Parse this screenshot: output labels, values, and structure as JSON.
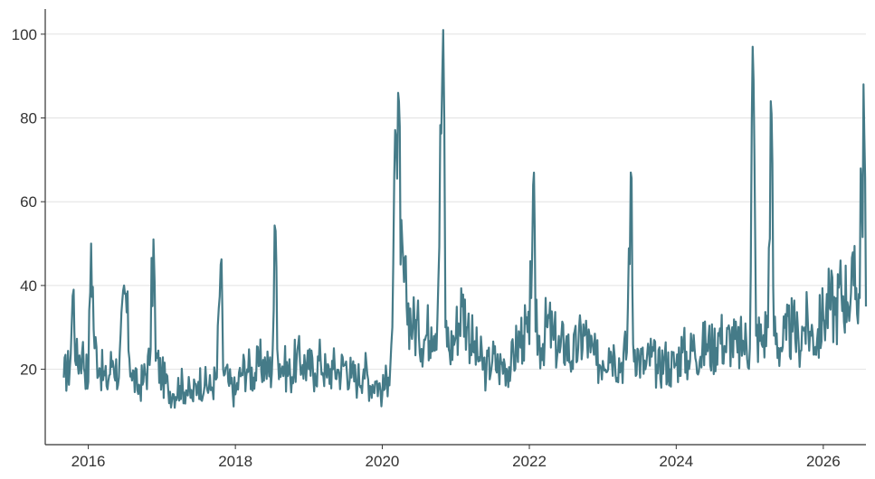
{
  "chart_data": {
    "type": "line",
    "title": "",
    "xlabel": "",
    "ylabel": "",
    "x_start": "2015-09",
    "x_end": "2026-08",
    "xlim": [
      "2015-06",
      "2026-08"
    ],
    "ylim": [
      2,
      106
    ],
    "grid": true,
    "legend": "none",
    "x_ticks": [
      "2016",
      "2018",
      "2020",
      "2022",
      "2024",
      "2026"
    ],
    "y_ticks": [
      20,
      40,
      60,
      80,
      100
    ],
    "series": [
      {
        "color": "#457b88",
        "points": [
          [
            "2015-09-01",
            18
          ],
          [
            "2015-10-01",
            20
          ],
          [
            "2015-10-20",
            39
          ],
          [
            "2015-11-01",
            21
          ],
          [
            "2015-12-01",
            24
          ],
          [
            "2016-01-01",
            17
          ],
          [
            "2016-01-15",
            50
          ],
          [
            "2016-02-01",
            25
          ],
          [
            "2016-03-01",
            20
          ],
          [
            "2016-04-01",
            16
          ],
          [
            "2016-05-01",
            22
          ],
          [
            "2016-06-01",
            18
          ],
          [
            "2016-07-01",
            38
          ],
          [
            "2016-08-01",
            19
          ],
          [
            "2016-09-01",
            15
          ],
          [
            "2016-10-01",
            17
          ],
          [
            "2016-11-01",
            21
          ],
          [
            "2016-11-20",
            51
          ],
          [
            "2016-12-01",
            22
          ],
          [
            "2017-01-01",
            18
          ],
          [
            "2017-02-01",
            15
          ],
          [
            "2017-03-01",
            14
          ],
          [
            "2017-04-01",
            16
          ],
          [
            "2017-05-01",
            15
          ],
          [
            "2017-06-01",
            13
          ],
          [
            "2017-07-01",
            17
          ],
          [
            "2017-08-01",
            16
          ],
          [
            "2017-09-01",
            15
          ],
          [
            "2017-10-01",
            18
          ],
          [
            "2017-10-20",
            45
          ],
          [
            "2017-11-01",
            20
          ],
          [
            "2017-12-01",
            16
          ],
          [
            "2018-01-01",
            14
          ],
          [
            "2018-02-01",
            19
          ],
          [
            "2018-03-01",
            20
          ],
          [
            "2018-04-01",
            18
          ],
          [
            "2018-05-01",
            21
          ],
          [
            "2018-06-01",
            20
          ],
          [
            "2018-07-01",
            19
          ],
          [
            "2018-07-20",
            53
          ],
          [
            "2018-08-01",
            22
          ],
          [
            "2018-09-01",
            20
          ],
          [
            "2018-10-01",
            18
          ],
          [
            "2018-11-01",
            22
          ],
          [
            "2018-12-01",
            21
          ],
          [
            "2019-01-01",
            20
          ],
          [
            "2019-02-01",
            19
          ],
          [
            "2019-03-01",
            22
          ],
          [
            "2019-04-01",
            18
          ],
          [
            "2019-05-01",
            20
          ],
          [
            "2019-06-01",
            19
          ],
          [
            "2019-07-01",
            21
          ],
          [
            "2019-08-01",
            18
          ],
          [
            "2019-09-01",
            17
          ],
          [
            "2019-10-01",
            20
          ],
          [
            "2019-11-01",
            16
          ],
          [
            "2019-12-01",
            17
          ],
          [
            "2020-01-01",
            14
          ],
          [
            "2020-02-01",
            18
          ],
          [
            "2020-02-20",
            30
          ],
          [
            "2020-03-10",
            75
          ],
          [
            "2020-03-20",
            86
          ],
          [
            "2020-04-01",
            45
          ],
          [
            "2020-05-01",
            35
          ],
          [
            "2020-06-01",
            30
          ],
          [
            "2020-07-01",
            28
          ],
          [
            "2020-08-01",
            27
          ],
          [
            "2020-09-01",
            30
          ],
          [
            "2020-10-01",
            32
          ],
          [
            "2020-10-30",
            101
          ],
          [
            "2020-11-10",
            30
          ],
          [
            "2020-12-01",
            24
          ],
          [
            "2021-01-01",
            28
          ],
          [
            "2021-02-01",
            35
          ],
          [
            "2021-03-01",
            30
          ],
          [
            "2021-04-01",
            24
          ],
          [
            "2021-05-01",
            22
          ],
          [
            "2021-06-01",
            19
          ],
          [
            "2021-07-01",
            22
          ],
          [
            "2021-08-01",
            20
          ],
          [
            "2021-09-01",
            21
          ],
          [
            "2021-10-01",
            20
          ],
          [
            "2021-11-01",
            25
          ],
          [
            "2021-12-01",
            28
          ],
          [
            "2022-01-01",
            26
          ],
          [
            "2022-01-20",
            64
          ],
          [
            "2022-02-01",
            29
          ],
          [
            "2022-03-01",
            25
          ],
          [
            "2022-04-01",
            30
          ],
          [
            "2022-05-01",
            27
          ],
          [
            "2022-06-01",
            24
          ],
          [
            "2022-07-01",
            26
          ],
          [
            "2022-08-01",
            22
          ],
          [
            "2022-09-01",
            25
          ],
          [
            "2022-10-01",
            28
          ],
          [
            "2022-11-01",
            24
          ],
          [
            "2022-12-01",
            21
          ],
          [
            "2023-01-01",
            22
          ],
          [
            "2023-02-01",
            25
          ],
          [
            "2023-03-01",
            23
          ],
          [
            "2023-04-01",
            21
          ],
          [
            "2023-05-01",
            24
          ],
          [
            "2023-05-20",
            67
          ],
          [
            "2023-06-01",
            26
          ],
          [
            "2023-07-01",
            22
          ],
          [
            "2023-08-01",
            20
          ],
          [
            "2023-09-01",
            23
          ],
          [
            "2023-10-01",
            19
          ],
          [
            "2023-11-01",
            22
          ],
          [
            "2023-12-01",
            20
          ],
          [
            "2024-01-01",
            21
          ],
          [
            "2024-02-01",
            24
          ],
          [
            "2024-03-01",
            22
          ],
          [
            "2024-04-01",
            25
          ],
          [
            "2024-05-01",
            23
          ],
          [
            "2024-06-01",
            26
          ],
          [
            "2024-07-01",
            24
          ],
          [
            "2024-08-01",
            28
          ],
          [
            "2024-09-01",
            25
          ],
          [
            "2024-10-01",
            27
          ],
          [
            "2024-11-01",
            24
          ],
          [
            "2024-12-01",
            26
          ],
          [
            "2025-01-01",
            25
          ],
          [
            "2025-01-15",
            97
          ],
          [
            "2025-02-01",
            28
          ],
          [
            "2025-03-01",
            26
          ],
          [
            "2025-04-01",
            30
          ],
          [
            "2025-04-15",
            84
          ],
          [
            "2025-05-01",
            28
          ],
          [
            "2025-06-01",
            25
          ],
          [
            "2025-07-01",
            27
          ],
          [
            "2025-08-01",
            29
          ],
          [
            "2025-09-01",
            26
          ],
          [
            "2025-10-01",
            30
          ],
          [
            "2025-11-01",
            28
          ],
          [
            "2025-12-01",
            27
          ],
          [
            "2026-01-01",
            32
          ],
          [
            "2026-02-01",
            35
          ],
          [
            "2026-03-01",
            33
          ],
          [
            "2026-04-01",
            38
          ],
          [
            "2026-05-01",
            36
          ],
          [
            "2026-06-01",
            40
          ],
          [
            "2026-07-01",
            37
          ],
          [
            "2026-07-20",
            88
          ],
          [
            "2026-08-01",
            35
          ]
        ]
      }
    ]
  }
}
